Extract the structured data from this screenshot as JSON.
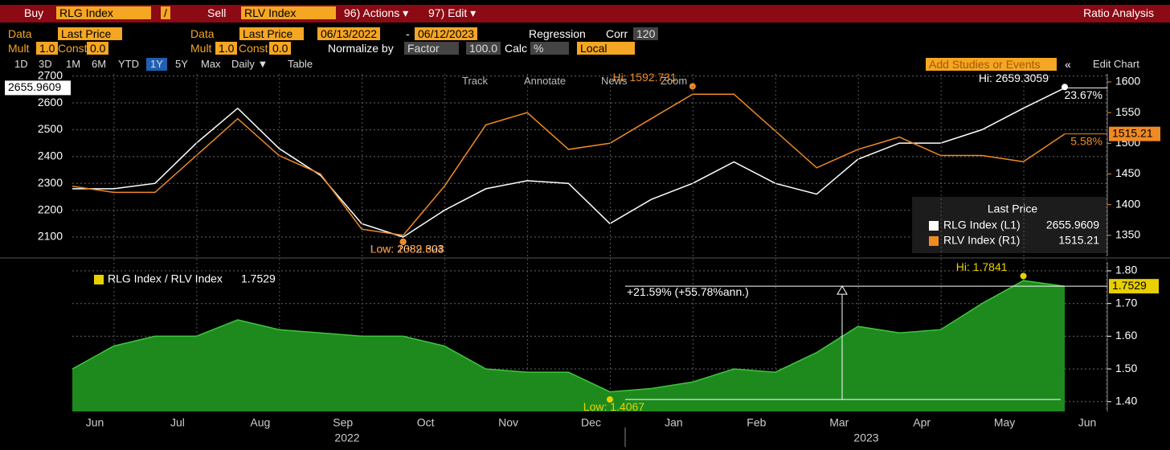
{
  "toolbar": {
    "row0": [
      "Buy",
      "RLG Index",
      "/",
      "Sell",
      "RLV Index",
      "96) Actions ▾",
      "97) Edit ▾",
      "Ratio Analysis"
    ],
    "row1": [
      "Data",
      "Last Price",
      "Data",
      "Last Price",
      "06/13/2022",
      "-",
      "06/12/2023",
      "Regression",
      "Corr",
      "120"
    ],
    "row2": [
      "Mult",
      "1.0",
      "Const",
      "0.0",
      "Mult",
      "1.0",
      "Const",
      "0.0",
      "Normalize by",
      "Factor",
      "100.0",
      "Calc",
      "%",
      "Local"
    ],
    "row3": [
      "1D",
      "3D",
      "1M",
      "6M",
      "YTD",
      "1Y",
      "5Y",
      "Max",
      "Daily ▼",
      "Table"
    ],
    "right": [
      "Add Studies or Events",
      "«",
      "Edit Chart"
    ],
    "chart_tools": [
      "Track",
      "Annotate",
      "News",
      "Zoom"
    ]
  },
  "chart_data": [
    {
      "type": "line",
      "legend_title": "Last Price",
      "ylim": [
        2031,
        2708
      ],
      "yticks": [
        2100,
        2200,
        2300,
        2400,
        2500,
        2600,
        2700
      ],
      "y2lim": [
        1317,
        1613
      ],
      "y2ticks": [
        1350,
        1400,
        1450,
        1500,
        1550,
        1600
      ],
      "grid": true,
      "series": [
        {
          "name": "RLG Index (L1)",
          "color": "#ffffff",
          "change": {
            "value": 23.67,
            "label": "23.67%"
          },
          "values": [
            2280,
            2280,
            2300,
            2450,
            2580,
            2430,
            2330,
            2150,
            2100,
            2200,
            2280,
            2310,
            2300,
            2150,
            2240,
            2300,
            2380,
            2300,
            2260,
            2390,
            2450,
            2450,
            2500,
            2580,
            2655.9609
          ]
        },
        {
          "name": "RLV Index (R1)",
          "color": "#f08a24",
          "axis": "y2",
          "change": {
            "value": 5.58,
            "label": "5.58%"
          },
          "values": [
            1430,
            1420,
            1420,
            1480,
            1540,
            1480,
            1450,
            1360,
            1350,
            1430,
            1530,
            1550,
            1490,
            1500,
            1540,
            1580,
            1580,
            1520,
            1460,
            1490,
            1510,
            1480,
            1480,
            1470,
            1515.21
          ]
        }
      ],
      "annotations": [
        {
          "series": 0,
          "kind": "max",
          "label": "Hi: 2659.3059",
          "value": 2659.3059
        },
        {
          "series": 0,
          "kind": "min",
          "label": "Low: 2082.303",
          "value": 2082.303
        },
        {
          "series": 1,
          "kind": "max",
          "label": "Hi: 1592.731",
          "value": 1592.731
        },
        {
          "series": 1,
          "kind": "min",
          "label": "Low: 1339.624",
          "value": 1339.624
        }
      ]
    },
    {
      "type": "area",
      "title": "RLG Index / RLV Index",
      "categories": [
        "Jun",
        null,
        "Jul",
        null,
        "Aug",
        null,
        "Sep",
        null,
        "Oct",
        null,
        "Nov",
        null,
        "Dec",
        null,
        "Jan",
        null,
        "Feb",
        null,
        "Mar",
        null,
        "Apr",
        null,
        "May",
        null,
        "Jun"
      ],
      "x_groups": [
        "2022",
        "2023"
      ],
      "ylim": [
        1.37,
        1.827
      ],
      "yticks": [
        {
          "value": 1.4,
          "label": "1.40"
        },
        {
          "value": 1.5,
          "label": "1.50"
        },
        {
          "value": 1.6,
          "label": "1.60"
        },
        {
          "value": 1.7,
          "label": "1.70"
        },
        {
          "value": 1.8,
          "label": "1.80"
        }
      ],
      "grid": true,
      "color": "#1e8a1e",
      "series": [
        {
          "name": "RLG Index / RLV Index",
          "color": "#e8d000",
          "values": [
            1.5,
            1.57,
            1.6,
            1.6,
            1.65,
            1.62,
            1.61,
            1.6,
            1.6,
            1.57,
            1.5,
            1.49,
            1.49,
            1.43,
            1.44,
            1.46,
            1.5,
            1.49,
            1.55,
            1.63,
            1.61,
            1.62,
            1.7,
            1.77,
            1.7529
          ]
        }
      ],
      "annotations": [
        {
          "series": 0,
          "kind": "max",
          "label": "Hi: 1.7841",
          "value": 1.7841
        },
        {
          "series": 0,
          "kind": "min",
          "label": "Low: 1.4067",
          "value": 1.4067
        }
      ],
      "measure": "+21.59% (+55.78%ann.)"
    }
  ]
}
